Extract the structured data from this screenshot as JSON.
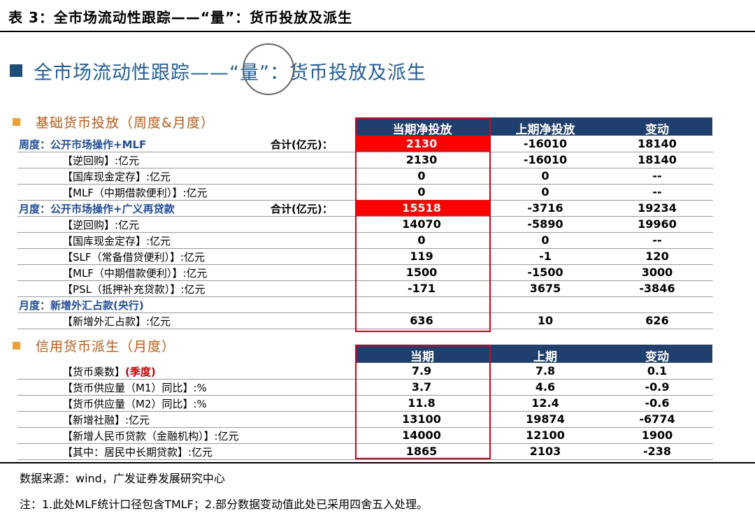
{
  "page_header": "表 3：全市场流动性跟踪——“量”：货币投放及派生",
  "slide_title": {
    "prefix": "全市场流动性跟踪——",
    "circled": "“量”",
    "suffix": "：货币投放及派生"
  },
  "section1": {
    "header": "基础货币投放（周度&月度）",
    "columns": [
      "当期净投放",
      "上期净投放",
      "变动"
    ],
    "rows": [
      {
        "label": "周度：公开市场操作+MLF",
        "type": "group",
        "sum_label": "合计(亿元)：",
        "v1": "2130",
        "v2": "-16010",
        "v3": "18140",
        "highlight": true
      },
      {
        "label": "【逆回购】:亿元",
        "type": "item",
        "v1": "2130",
        "v2": "-16010",
        "v3": "18140"
      },
      {
        "label": "【国库现金定存】:亿元",
        "type": "item",
        "v1": "0",
        "v2": "0",
        "v3": "--"
      },
      {
        "label": "【MLF（中期借款便利）】:亿元",
        "type": "item",
        "v1": "0",
        "v2": "0",
        "v3": "--"
      },
      {
        "label": "月度：公开市场操作+广义再贷款",
        "type": "group",
        "sum_label": "合计(亿元)：",
        "v1": "15518",
        "v2": "-3716",
        "v3": "19234",
        "highlight": true
      },
      {
        "label": "【逆回购】:亿元",
        "type": "item",
        "v1": "14070",
        "v2": "-5890",
        "v3": "19960"
      },
      {
        "label": "【国库现金定存】:亿元",
        "type": "item",
        "v1": "0",
        "v2": "0",
        "v3": "--"
      },
      {
        "label": "【SLF（常备借贷便利）】:亿元",
        "type": "item",
        "v1": "119",
        "v2": "-1",
        "v3": "120"
      },
      {
        "label": "【MLF（中期借款便利）】:亿元",
        "type": "item",
        "v1": "1500",
        "v2": "-1500",
        "v3": "3000"
      },
      {
        "label": "【PSL（抵押补充贷款）】:亿元",
        "type": "item",
        "v1": "-171",
        "v2": "3675",
        "v3": "-3846"
      },
      {
        "label": "月度：新增外汇占款(央行)",
        "type": "group",
        "v1": "",
        "v2": "",
        "v3": ""
      },
      {
        "label": "【新增外汇占款】:亿元",
        "type": "item",
        "v1": "636",
        "v2": "10",
        "v3": "626"
      }
    ]
  },
  "section2": {
    "header": "信用货币派生（月度）",
    "columns": [
      "当期",
      "上期",
      "变动"
    ],
    "rows": [
      {
        "label": "【货币乘数】",
        "red_suffix": "(季度)",
        "type": "item",
        "v1": "7.9",
        "v2": "7.8",
        "v3": "0.1"
      },
      {
        "label": "【货币供应量（M1）同比】:%",
        "type": "item",
        "v1": "3.7",
        "v2": "4.6",
        "v3": "-0.9"
      },
      {
        "label": "【货币供应量（M2）同比】:%",
        "type": "item",
        "v1": "11.8",
        "v2": "12.4",
        "v3": "-0.6"
      },
      {
        "label": "【新增社融】:亿元",
        "type": "item",
        "v1": "13100",
        "v2": "19874",
        "v3": "-6774"
      },
      {
        "label": "【新增人民币贷款（金融机构）】:亿元",
        "type": "item",
        "v1": "14000",
        "v2": "12100",
        "v3": "1900"
      },
      {
        "label": "【其中：居民中长期贷款】:亿元",
        "type": "item",
        "v1": "1865",
        "v2": "2103",
        "v3": "-238"
      }
    ]
  },
  "footer": {
    "source": "数据来源：wind，广发证券发展研究中心",
    "note": "注：1.此处MLF统计口径包含TMLF；2.部分数据变动值此处已采用四舍五入处理。"
  },
  "colors": {
    "header_bar": "#1f3f6f",
    "highlight": "#ff0000",
    "frame": "#e0001b",
    "group_label": "#1f4e9f",
    "section_header": "#c55a11"
  }
}
